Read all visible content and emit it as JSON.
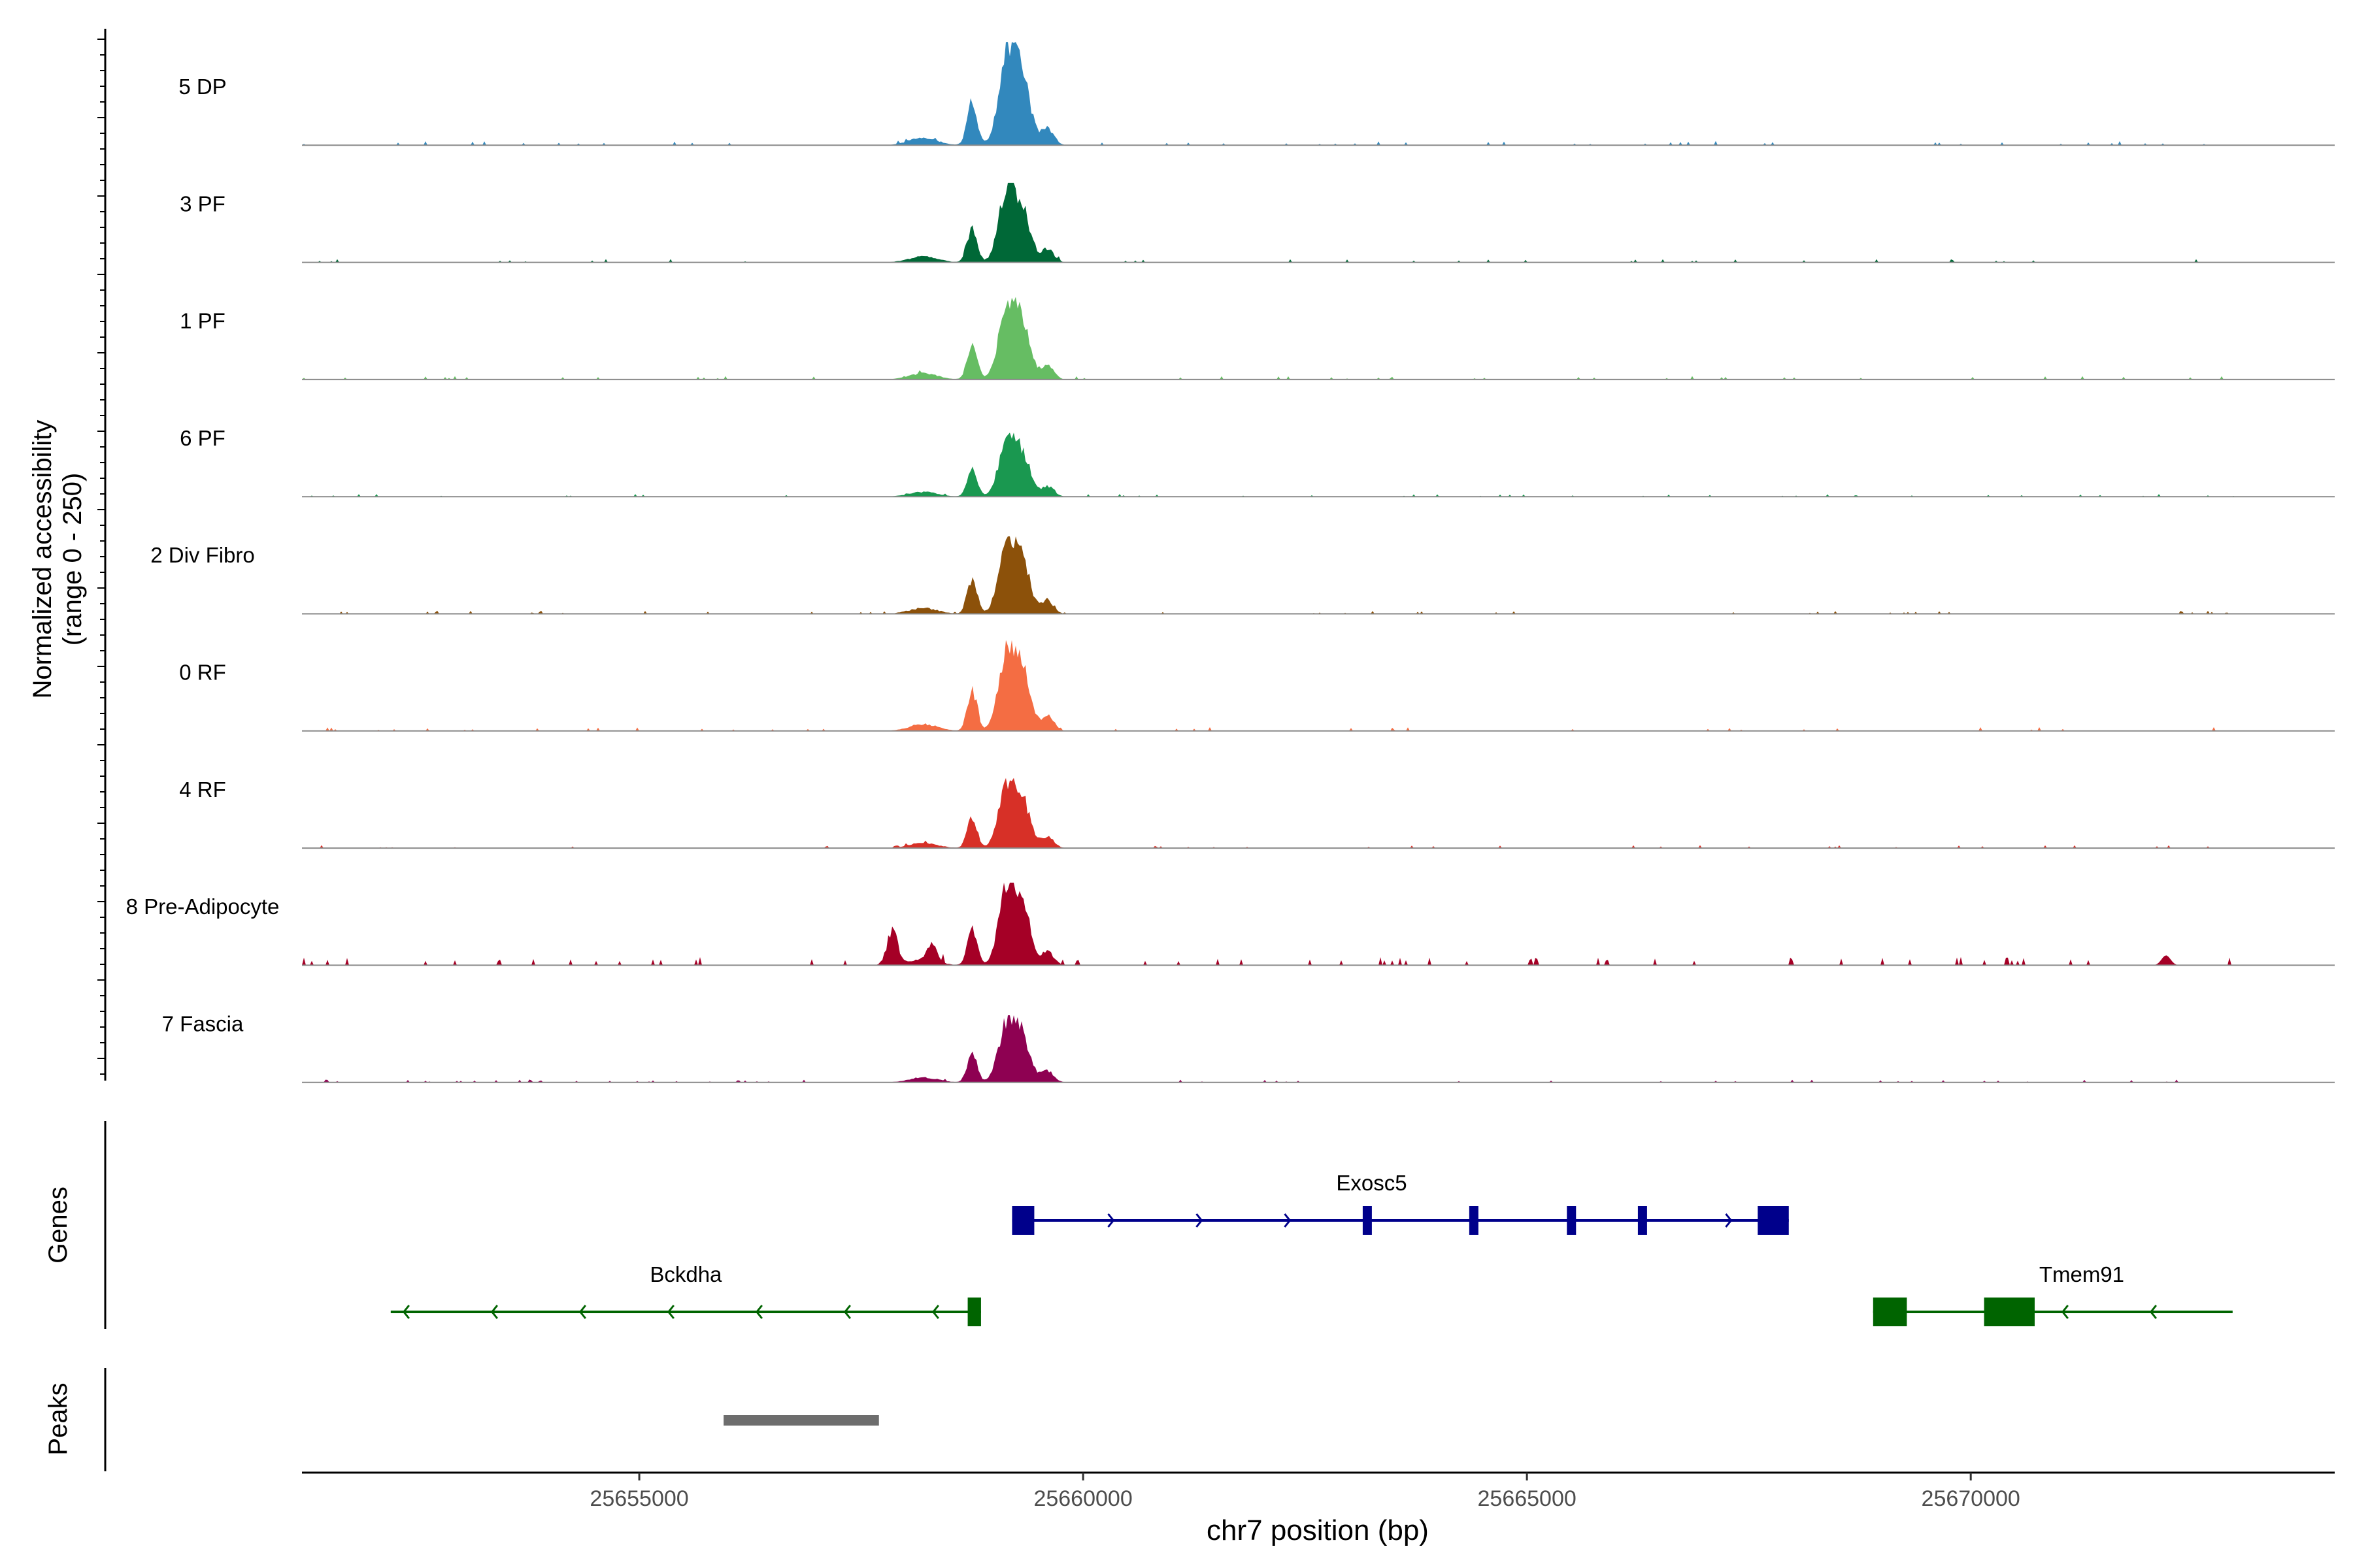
{
  "chart_data": {
    "type": "area",
    "title": "",
    "ylabel_line1": "Normalized accessibility",
    "ylabel_line2": "(range 0 - 250)",
    "xlabel": "chr7 position (bp)",
    "xlim": [
      25651200,
      25674100
    ],
    "xticks": [
      {
        "value": 25655000,
        "label": "25655000"
      },
      {
        "value": 25660000,
        "label": "25660000"
      },
      {
        "value": 25665000,
        "label": "25665000"
      },
      {
        "value": 25670000,
        "label": "25670000"
      }
    ],
    "ylim": [
      0,
      250
    ],
    "series": [
      {
        "name": "5 DP",
        "color": "#3288bd",
        "scale": 1.0
      },
      {
        "name": "3 PF",
        "color": "#006837",
        "scale": 0.77
      },
      {
        "name": "1 PF",
        "color": "#66bd63",
        "scale": 0.8
      },
      {
        "name": "6 PF",
        "color": "#1a9850",
        "scale": 0.62
      },
      {
        "name": "2 Div Fibro",
        "color": "#8c510a",
        "scale": 0.75
      },
      {
        "name": "0 RF",
        "color": "#f46d43",
        "scale": 0.88
      },
      {
        "name": "4 RF",
        "color": "#d73027",
        "scale": 0.68
      },
      {
        "name": "8 Pre-Adipocyte",
        "color": "#a50026",
        "scale": 0.8,
        "extra_peaks": true
      },
      {
        "name": "7 Fascia",
        "color": "#8e0152",
        "scale": 0.65
      }
    ],
    "genes_track_label": "Genes",
    "peaks_track_label": "Peaks",
    "genes": [
      {
        "name": "Exosc5",
        "strand": "+",
        "row": 0,
        "color": "#00008b",
        "start": 25659200,
        "end": 25667950,
        "exons": [
          [
            25659200,
            25659450
          ],
          [
            25663150,
            25663250
          ],
          [
            25664350,
            25664450
          ],
          [
            25665450,
            25665550
          ],
          [
            25666250,
            25666330
          ],
          [
            25667600,
            25667950
          ]
        ]
      },
      {
        "name": "Bckdha",
        "strand": "-",
        "row": 1,
        "color": "#006400",
        "start": 25652200,
        "end": 25658850,
        "exons": [
          [
            25658700,
            25658850
          ]
        ]
      },
      {
        "name": "Tmem91",
        "strand": "-",
        "row": 1,
        "color": "#006400",
        "start": 25668900,
        "end": 25672950,
        "exons": [
          [
            25668900,
            25669280
          ],
          [
            25670150,
            25670720
          ]
        ]
      }
    ],
    "peaks": [
      {
        "start": 25655950,
        "end": 25657700,
        "color": "#6d6d6d"
      }
    ]
  }
}
